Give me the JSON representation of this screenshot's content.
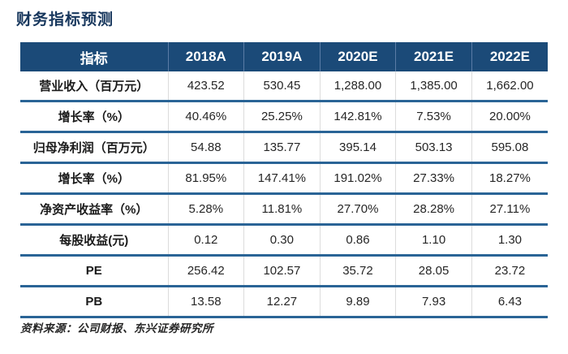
{
  "page": {
    "title": "财务指标预测",
    "source": "资料来源：公司财报、东兴证券研究所"
  },
  "colors": {
    "header_bg": "#1b4a78",
    "header_text": "#ffffff",
    "title_text": "#17375d",
    "row_divider": "#2a6496"
  },
  "table": {
    "columns": [
      "指标",
      "2018A",
      "2019A",
      "2020E",
      "2021E",
      "2022E"
    ],
    "rows": [
      {
        "label": "营业收入（百万元）",
        "values": [
          "423.52",
          "530.45",
          "1,288.00",
          "1,385.00",
          "1,662.00"
        ]
      },
      {
        "label": "增长率（%）",
        "values": [
          "40.46%",
          "25.25%",
          "142.81%",
          "7.53%",
          "20.00%"
        ]
      },
      {
        "label": "归母净利润（百万元）",
        "values": [
          "54.88",
          "135.77",
          "395.14",
          "503.13",
          "595.08"
        ]
      },
      {
        "label": "增长率（%）",
        "values": [
          "81.95%",
          "147.41%",
          "191.02%",
          "27.33%",
          "18.27%"
        ]
      },
      {
        "label": "净资产收益率（%）",
        "values": [
          "5.28%",
          "11.81%",
          "27.70%",
          "28.28%",
          "27.11%"
        ]
      },
      {
        "label": "每股收益(元)",
        "values": [
          "0.12",
          "0.30",
          "0.86",
          "1.10",
          "1.30"
        ]
      },
      {
        "label": "PE",
        "values": [
          "256.42",
          "102.57",
          "35.72",
          "28.05",
          "23.72"
        ]
      },
      {
        "label": "PB",
        "values": [
          "13.58",
          "12.27",
          "9.89",
          "7.93",
          "6.43"
        ]
      }
    ]
  }
}
